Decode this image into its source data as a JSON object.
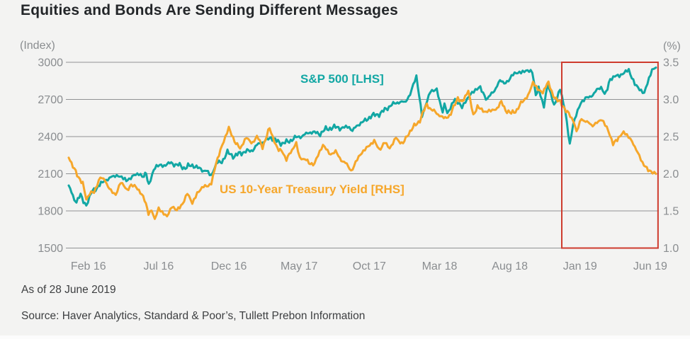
{
  "header": {
    "title": "Equities and Bonds Are Sending Different Messages"
  },
  "footer": {
    "as_of": "As of 28 June 2019",
    "source": "Source: Haver Analytics, Standard & Poor’s, Tullett Prebon Information"
  },
  "colors": {
    "background": "#F3F3F2",
    "title_text": "#232629",
    "axis_text": "#8A8D90",
    "gridline": "#909294",
    "sp500": "#12A7A4",
    "treasury": "#F6A72B",
    "highlight_box": "#CE3B2E"
  },
  "chart_data": {
    "type": "line",
    "title": "Equities and Bonds Are Sending Different Messages",
    "x_start": "Jan 2016",
    "x_end": "Jun 2019",
    "grid": "horizontal-only",
    "left_axis": {
      "unit_label": "(Index)",
      "ticks": [
        3000,
        2700,
        2400,
        2100,
        1800,
        1500
      ],
      "range": [
        1500,
        3000
      ]
    },
    "right_axis": {
      "unit_label": "(%)",
      "ticks": [
        "3.5",
        "3.0",
        "2.5",
        "2.0",
        "1.5",
        "1.0"
      ],
      "range": [
        1.0,
        3.5
      ]
    },
    "x_axis": {
      "ticks": [
        {
          "label": "Feb 16",
          "month": 1
        },
        {
          "label": "Jul 16",
          "month": 6
        },
        {
          "label": "Dec 16",
          "month": 11
        },
        {
          "label": "May 17",
          "month": 16
        },
        {
          "label": "Oct 17",
          "month": 21
        },
        {
          "label": "Mar 18",
          "month": 26
        },
        {
          "label": "Aug 18",
          "month": 31
        },
        {
          "label": "Jan 19",
          "month": 36
        },
        {
          "label": "Jun 19",
          "month": 41
        }
      ]
    },
    "series": [
      {
        "name": "S&P 500 [LHS]",
        "axis": "left",
        "color": "#12A7A4",
        "points_months_from_jan2016": [
          [
            0.1,
            2013
          ],
          [
            0.5,
            1880
          ],
          [
            0.65,
            1859
          ],
          [
            0.95,
            1940
          ],
          [
            1.35,
            1829
          ],
          [
            1.7,
            1945
          ],
          [
            2.2,
            2000
          ],
          [
            2.4,
            2022
          ],
          [
            3.0,
            2060
          ],
          [
            3.4,
            2085
          ],
          [
            3.75,
            2081
          ],
          [
            4.1,
            2065
          ],
          [
            4.4,
            2047
          ],
          [
            4.75,
            2090
          ],
          [
            5.1,
            2099
          ],
          [
            5.45,
            2071
          ],
          [
            5.62,
            2113
          ],
          [
            5.8,
            2001
          ],
          [
            6.05,
            2099
          ],
          [
            6.35,
            2160
          ],
          [
            6.9,
            2174
          ],
          [
            7.4,
            2184
          ],
          [
            7.9,
            2171
          ],
          [
            8.3,
            2147
          ],
          [
            8.6,
            2160
          ],
          [
            9.0,
            2168
          ],
          [
            9.5,
            2133
          ],
          [
            9.9,
            2126
          ],
          [
            10.25,
            2085
          ],
          [
            10.6,
            2180
          ],
          [
            11.0,
            2199
          ],
          [
            11.4,
            2272
          ],
          [
            11.9,
            2239
          ],
          [
            12.3,
            2268
          ],
          [
            12.8,
            2280
          ],
          [
            13.2,
            2294
          ],
          [
            13.7,
            2348
          ],
          [
            14.1,
            2364
          ],
          [
            14.5,
            2396
          ],
          [
            14.9,
            2363
          ],
          [
            15.3,
            2345
          ],
          [
            15.7,
            2358
          ],
          [
            16.1,
            2384
          ],
          [
            16.5,
            2400
          ],
          [
            16.9,
            2412
          ],
          [
            17.3,
            2440
          ],
          [
            17.6,
            2430
          ],
          [
            18.0,
            2423
          ],
          [
            18.4,
            2460
          ],
          [
            18.8,
            2470
          ],
          [
            19.2,
            2477
          ],
          [
            19.6,
            2465
          ],
          [
            19.95,
            2472
          ],
          [
            20.3,
            2442
          ],
          [
            20.7,
            2500
          ],
          [
            21.1,
            2519
          ],
          [
            21.5,
            2557
          ],
          [
            21.9,
            2575
          ],
          [
            22.3,
            2585
          ],
          [
            22.7,
            2627
          ],
          [
            23.0,
            2648
          ],
          [
            23.5,
            2680
          ],
          [
            24.0,
            2674
          ],
          [
            24.4,
            2743
          ],
          [
            24.85,
            2873
          ],
          [
            25.25,
            2581
          ],
          [
            25.85,
            2780
          ],
          [
            26.3,
            2787
          ],
          [
            26.72,
            2588
          ],
          [
            26.85,
            2658
          ],
          [
            27.05,
            2582
          ],
          [
            27.6,
            2708
          ],
          [
            28.1,
            2630
          ],
          [
            28.7,
            2733
          ],
          [
            29.4,
            2787
          ],
          [
            29.9,
            2700
          ],
          [
            30.3,
            2760
          ],
          [
            30.8,
            2846
          ],
          [
            31.3,
            2840
          ],
          [
            31.95,
            2914
          ],
          [
            32.65,
            2931
          ],
          [
            33.1,
            2925
          ],
          [
            33.35,
            2728
          ],
          [
            33.55,
            2809
          ],
          [
            33.93,
            2641
          ],
          [
            34.2,
            2814
          ],
          [
            34.65,
            2642
          ],
          [
            35.08,
            2790
          ],
          [
            35.45,
            2600
          ],
          [
            35.77,
            2351
          ],
          [
            36.0,
            2507
          ],
          [
            36.55,
            2671
          ],
          [
            37.0,
            2706
          ],
          [
            37.5,
            2750
          ],
          [
            38.0,
            2803
          ],
          [
            38.25,
            2743
          ],
          [
            38.65,
            2855
          ],
          [
            39.3,
            2900
          ],
          [
            39.97,
            2946
          ],
          [
            40.4,
            2811
          ],
          [
            41.07,
            2744
          ],
          [
            41.63,
            2954
          ],
          [
            41.9,
            2942
          ]
        ]
      },
      {
        "name": "US 10-Year Treasury Yield [RHS]",
        "axis": "right",
        "color": "#F6A72B",
        "points_months_from_jan2016": [
          [
            0.1,
            2.24
          ],
          [
            0.4,
            2.09
          ],
          [
            0.7,
            1.99
          ],
          [
            1.1,
            1.87
          ],
          [
            1.35,
            1.66
          ],
          [
            1.6,
            1.75
          ],
          [
            1.9,
            1.74
          ],
          [
            2.35,
            1.94
          ],
          [
            2.7,
            1.9
          ],
          [
            3.1,
            1.78
          ],
          [
            3.45,
            1.72
          ],
          [
            3.8,
            1.89
          ],
          [
            4.25,
            1.76
          ],
          [
            4.55,
            1.85
          ],
          [
            4.9,
            1.84
          ],
          [
            5.3,
            1.71
          ],
          [
            5.6,
            1.61
          ],
          [
            5.78,
            1.46
          ],
          [
            6.0,
            1.49
          ],
          [
            6.23,
            1.36
          ],
          [
            6.5,
            1.55
          ],
          [
            6.75,
            1.5
          ],
          [
            7.1,
            1.45
          ],
          [
            7.45,
            1.58
          ],
          [
            7.8,
            1.52
          ],
          [
            8.2,
            1.57
          ],
          [
            8.55,
            1.73
          ],
          [
            8.9,
            1.6
          ],
          [
            9.25,
            1.74
          ],
          [
            9.7,
            1.83
          ],
          [
            10.25,
            1.88
          ],
          [
            10.6,
            2.15
          ],
          [
            10.9,
            2.3
          ],
          [
            11.25,
            2.47
          ],
          [
            11.5,
            2.6
          ],
          [
            11.9,
            2.45
          ],
          [
            12.3,
            2.33
          ],
          [
            12.75,
            2.48
          ],
          [
            13.1,
            2.41
          ],
          [
            13.5,
            2.5
          ],
          [
            13.9,
            2.36
          ],
          [
            14.4,
            2.61
          ],
          [
            14.85,
            2.38
          ],
          [
            15.25,
            2.3
          ],
          [
            15.6,
            2.18
          ],
          [
            16.0,
            2.33
          ],
          [
            16.3,
            2.41
          ],
          [
            16.55,
            2.22
          ],
          [
            16.9,
            2.2
          ],
          [
            17.2,
            2.14
          ],
          [
            17.6,
            2.14
          ],
          [
            17.85,
            2.27
          ],
          [
            18.2,
            2.39
          ],
          [
            18.75,
            2.25
          ],
          [
            19.1,
            2.29
          ],
          [
            19.5,
            2.19
          ],
          [
            19.9,
            2.12
          ],
          [
            20.2,
            2.05
          ],
          [
            20.85,
            2.25
          ],
          [
            21.3,
            2.33
          ],
          [
            21.85,
            2.46
          ],
          [
            22.2,
            2.33
          ],
          [
            22.6,
            2.41
          ],
          [
            22.95,
            2.33
          ],
          [
            23.4,
            2.48
          ],
          [
            23.9,
            2.4
          ],
          [
            24.3,
            2.55
          ],
          [
            24.8,
            2.66
          ],
          [
            25.1,
            2.72
          ],
          [
            25.6,
            2.94
          ],
          [
            25.9,
            2.86
          ],
          [
            26.3,
            2.82
          ],
          [
            26.8,
            2.74
          ],
          [
            27.3,
            2.8
          ],
          [
            27.8,
            3.03
          ],
          [
            28.1,
            2.95
          ],
          [
            28.55,
            3.11
          ],
          [
            28.9,
            2.77
          ],
          [
            29.2,
            2.92
          ],
          [
            29.6,
            2.83
          ],
          [
            29.9,
            2.85
          ],
          [
            30.5,
            2.87
          ],
          [
            30.9,
            2.96
          ],
          [
            31.2,
            2.86
          ],
          [
            31.6,
            2.81
          ],
          [
            32.0,
            2.86
          ],
          [
            32.4,
            2.97
          ],
          [
            32.8,
            3.06
          ],
          [
            33.15,
            3.23
          ],
          [
            33.5,
            3.13
          ],
          [
            33.85,
            3.08
          ],
          [
            34.25,
            3.24
          ],
          [
            34.6,
            3.06
          ],
          [
            34.9,
            2.99
          ],
          [
            35.3,
            2.91
          ],
          [
            35.6,
            2.83
          ],
          [
            35.9,
            2.74
          ],
          [
            36.05,
            2.69
          ],
          [
            36.25,
            2.56
          ],
          [
            36.6,
            2.74
          ],
          [
            36.9,
            2.71
          ],
          [
            37.3,
            2.65
          ],
          [
            37.7,
            2.69
          ],
          [
            38.05,
            2.72
          ],
          [
            38.4,
            2.61
          ],
          [
            38.85,
            2.39
          ],
          [
            39.25,
            2.5
          ],
          [
            39.6,
            2.57
          ],
          [
            39.95,
            2.5
          ],
          [
            40.2,
            2.45
          ],
          [
            40.6,
            2.27
          ],
          [
            40.95,
            2.13
          ],
          [
            41.25,
            2.09
          ],
          [
            41.55,
            2.01
          ],
          [
            41.9,
            2.0
          ]
        ]
      }
    ],
    "highlight_box": {
      "from_month": 35.2,
      "to_month": 42.05,
      "color": "#CE3B2E"
    }
  }
}
